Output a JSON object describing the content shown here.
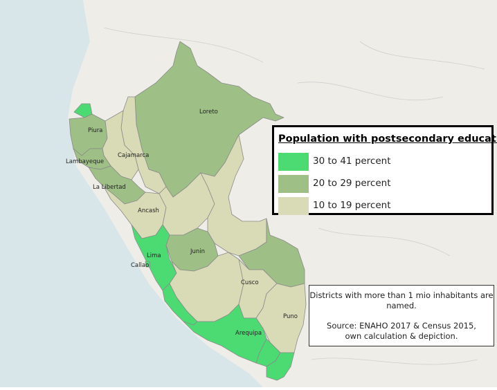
{
  "legend": {
    "title": "Population with postsecondary education",
    "items": [
      {
        "label": "30 to 41 percent",
        "color": "#4cdb73"
      },
      {
        "label": "20 to 29 percent",
        "color": "#9ebf86"
      },
      {
        "label": "10 to 19 percent",
        "color": "#d8dbb6"
      }
    ]
  },
  "note": {
    "line1": "Districts with more than 1 mio inhabitants are",
    "line2": "named.",
    "line3": "Source: ENAHO 2017 & Census 2015,",
    "line4": "own calculation & depiction."
  },
  "regions": {
    "loreto": "Loreto",
    "piura": "Piura",
    "cajamarca": "Cajamarca",
    "lambayeque": "Lambayeque",
    "la_libertad": "La Libertad",
    "ancash": "Ancash",
    "lima": "Lima",
    "callao": "Callao",
    "junin": "Junin",
    "cusco": "Cusco",
    "puno": "Puno",
    "arequipa": "Arequipa"
  },
  "colors": {
    "ocean": "#d8e6ea",
    "land": "#f2f1ee",
    "high": "#4cdb73",
    "mid": "#9ebf86",
    "low": "#d8dbb6"
  }
}
